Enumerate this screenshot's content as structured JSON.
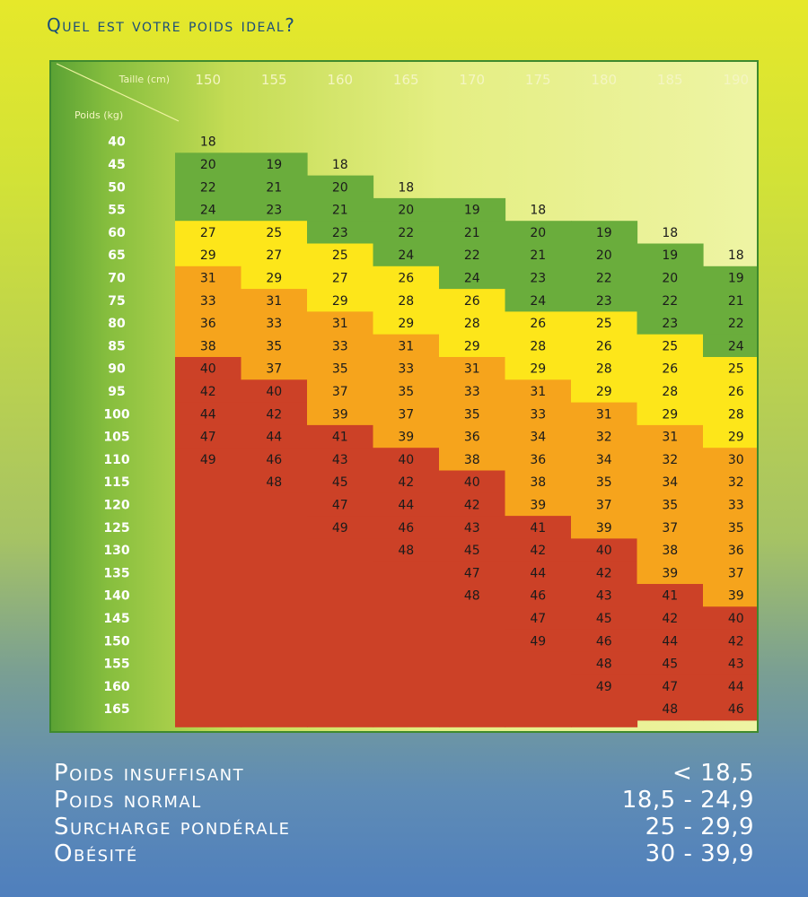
{
  "title": "Quel est votre poids ideal?",
  "colors": {
    "green": "#6aad3c",
    "yellow": "#fde61a",
    "orange": "#f6a41c",
    "red": "#cc4127",
    "label_white": "#ffffff",
    "header_text": "#f4f5c2"
  },
  "chart_data": {
    "type": "table",
    "column_header": "Taille (cm)",
    "row_header": "Poids (kg)",
    "heights": [
      150,
      155,
      160,
      165,
      170,
      175,
      180,
      185,
      190
    ],
    "weights": [
      40,
      45,
      50,
      55,
      60,
      65,
      70,
      75,
      80,
      85,
      90,
      95,
      100,
      105,
      110,
      115,
      120,
      125,
      130,
      135,
      140,
      145,
      150,
      155,
      160,
      165
    ],
    "bmi": [
      [
        18,
        null,
        null,
        null,
        null,
        null,
        null,
        null,
        null
      ],
      [
        20,
        19,
        18,
        null,
        null,
        null,
        null,
        null,
        null
      ],
      [
        22,
        21,
        20,
        18,
        null,
        null,
        null,
        null,
        null
      ],
      [
        24,
        23,
        21,
        20,
        19,
        18,
        null,
        null,
        null
      ],
      [
        27,
        25,
        23,
        22,
        21,
        20,
        19,
        18,
        null
      ],
      [
        29,
        27,
        25,
        24,
        22,
        21,
        20,
        19,
        18
      ],
      [
        31,
        29,
        27,
        26,
        24,
        23,
        22,
        20,
        19
      ],
      [
        33,
        31,
        29,
        28,
        26,
        24,
        23,
        22,
        21
      ],
      [
        36,
        33,
        31,
        29,
        28,
        26,
        25,
        23,
        22
      ],
      [
        38,
        35,
        33,
        31,
        29,
        28,
        26,
        25,
        24
      ],
      [
        40,
        37,
        35,
        33,
        31,
        29,
        28,
        26,
        25
      ],
      [
        42,
        40,
        37,
        35,
        33,
        31,
        29,
        28,
        26
      ],
      [
        44,
        42,
        39,
        37,
        35,
        33,
        31,
        29,
        28
      ],
      [
        47,
        44,
        41,
        39,
        36,
        34,
        32,
        31,
        29
      ],
      [
        49,
        46,
        43,
        40,
        38,
        36,
        34,
        32,
        30
      ],
      [
        null,
        48,
        45,
        42,
        40,
        38,
        35,
        34,
        32
      ],
      [
        null,
        null,
        47,
        44,
        42,
        39,
        37,
        35,
        33
      ],
      [
        null,
        null,
        49,
        46,
        43,
        41,
        39,
        37,
        35
      ],
      [
        null,
        null,
        null,
        48,
        45,
        42,
        40,
        38,
        36
      ],
      [
        null,
        null,
        null,
        null,
        47,
        44,
        42,
        39,
        37
      ],
      [
        null,
        null,
        null,
        null,
        48,
        46,
        43,
        41,
        39
      ],
      [
        null,
        null,
        null,
        null,
        null,
        47,
        45,
        42,
        40
      ],
      [
        null,
        null,
        null,
        null,
        null,
        49,
        46,
        44,
        42
      ],
      [
        null,
        null,
        null,
        null,
        null,
        null,
        48,
        45,
        43
      ],
      [
        null,
        null,
        null,
        null,
        null,
        null,
        49,
        47,
        44
      ],
      [
        null,
        null,
        null,
        null,
        null,
        null,
        null,
        48,
        46
      ]
    ]
  },
  "legend": [
    {
      "label": "Poids insuffisant",
      "range": "< 18,5"
    },
    {
      "label": "Poids normal",
      "range": "18,5 - 24,9"
    },
    {
      "label": "Surcharge pondérale",
      "range": "25 - 29,9"
    },
    {
      "label": "Obésité",
      "range": "30 - 39,9"
    }
  ]
}
